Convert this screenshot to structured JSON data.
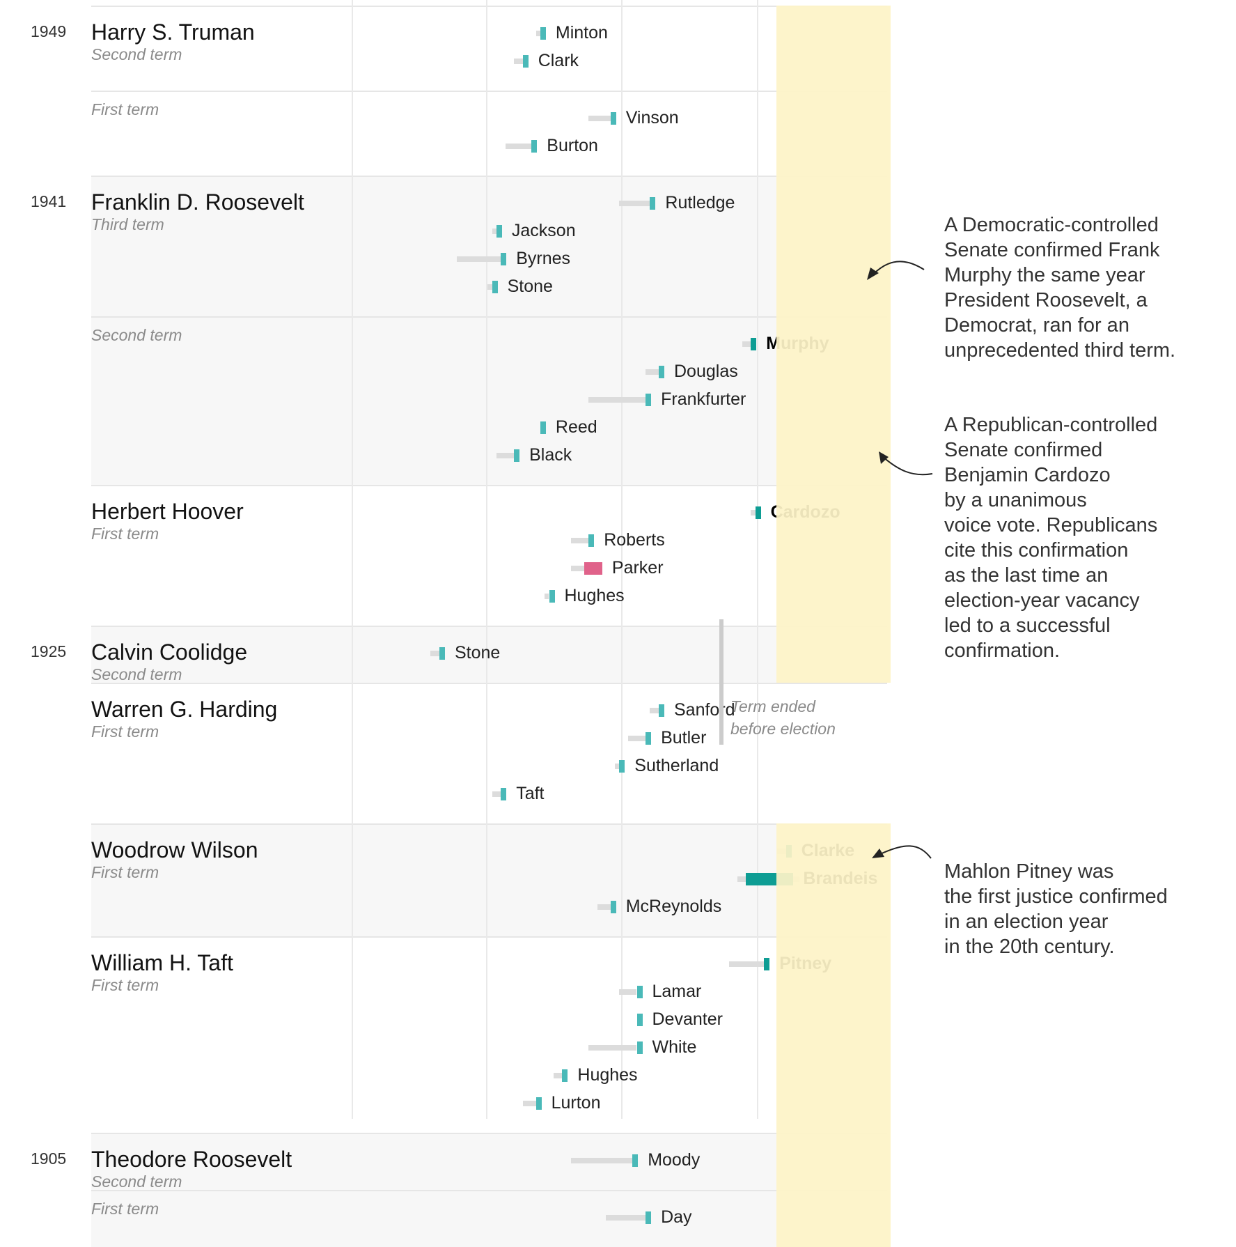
{
  "colors": {
    "confirmed": "#4ab9b8",
    "election_year_confirmed": "#0e9d94",
    "rejected": "#e0628a",
    "wait": "#dcdcdc",
    "highlight": "#fdf3c7"
  },
  "chart_data": {
    "type": "timeline",
    "title": "",
    "legend": [],
    "rows": [
      {
        "president": "Harry S. Truman",
        "term": "Second term",
        "year": "1949",
        "shaded": false,
        "justices": [
          {
            "name": "Minton",
            "nominated": 0.42,
            "confirmed": 0.43,
            "status": "confirmed"
          },
          {
            "name": "Clark",
            "nominated": 0.37,
            "confirmed": 0.39,
            "status": "confirmed"
          }
        ]
      },
      {
        "president": "",
        "term": "First term",
        "year": "",
        "shaded": false,
        "justices": [
          {
            "name": "Vinson",
            "nominated": 0.54,
            "confirmed": 0.59,
            "status": "confirmed"
          },
          {
            "name": "Burton",
            "nominated": 0.35,
            "confirmed": 0.41,
            "status": "confirmed"
          }
        ]
      },
      {
        "president": "Franklin D. Roosevelt",
        "term": "Third term",
        "year": "1941",
        "shaded": true,
        "justices": [
          {
            "name": "Rutledge",
            "nominated": 0.61,
            "confirmed": 0.68,
            "status": "confirmed"
          },
          {
            "name": "Jackson",
            "nominated": 0.32,
            "confirmed": 0.33,
            "status": "confirmed"
          },
          {
            "name": "Byrnes",
            "nominated": 0.24,
            "confirmed": 0.34,
            "status": "confirmed"
          },
          {
            "name": "Stone",
            "nominated": 0.31,
            "confirmed": 0.32,
            "status": "confirmed"
          }
        ]
      },
      {
        "president": "",
        "term": "Second term",
        "year": "",
        "shaded": true,
        "justices": [
          {
            "name": "Murphy",
            "nominated": 0.89,
            "confirmed": 0.91,
            "status": "election_year"
          },
          {
            "name": "Douglas",
            "nominated": 0.67,
            "confirmed": 0.7,
            "status": "confirmed"
          },
          {
            "name": "Frankfurter",
            "nominated": 0.54,
            "confirmed": 0.67,
            "status": "confirmed"
          },
          {
            "name": "Reed",
            "nominated": 0.43,
            "confirmed": 0.43,
            "status": "confirmed"
          },
          {
            "name": "Black",
            "nominated": 0.33,
            "confirmed": 0.37,
            "status": "confirmed"
          }
        ]
      },
      {
        "president": "Herbert Hoover",
        "term": "First term",
        "year": "",
        "shaded": false,
        "justices": [
          {
            "name": "Cardozo",
            "nominated": 0.91,
            "confirmed": 0.92,
            "status": "election_year"
          },
          {
            "name": "Roberts",
            "nominated": 0.5,
            "confirmed": 0.54,
            "status": "confirmed"
          },
          {
            "name": "Parker",
            "nominated": 0.5,
            "confirmed": 0.53,
            "status": "rejected"
          },
          {
            "name": "Hughes",
            "nominated": 0.44,
            "confirmed": 0.45,
            "status": "confirmed"
          }
        ]
      },
      {
        "president": "Calvin Coolidge",
        "term": "Second term",
        "year": "1925",
        "shaded": true,
        "justices": [
          {
            "name": "Stone",
            "nominated": 0.18,
            "confirmed": 0.2,
            "status": "confirmed"
          }
        ]
      },
      {
        "president": "Warren G. Harding",
        "term": "First term",
        "year": "",
        "shaded": false,
        "justices": [
          {
            "name": "Sanford",
            "nominated": 0.68,
            "confirmed": 0.7,
            "status": "confirmed"
          },
          {
            "name": "Butler",
            "nominated": 0.63,
            "confirmed": 0.67,
            "status": "confirmed"
          },
          {
            "name": "Sutherland",
            "nominated": 0.6,
            "confirmed": 0.61,
            "status": "confirmed"
          },
          {
            "name": "Taft",
            "nominated": 0.32,
            "confirmed": 0.34,
            "status": "confirmed"
          }
        ]
      },
      {
        "president": "Woodrow Wilson",
        "term": "First term",
        "year": "",
        "shaded": true,
        "justices": [
          {
            "name": "Clarke",
            "nominated": 0.97,
            "confirmed": 0.99,
            "status": "election_year"
          },
          {
            "name": "Brandeis",
            "nominated": 0.88,
            "confirmed": 1.02,
            "status": "election_year"
          },
          {
            "name": "McReynolds",
            "nominated": 0.56,
            "confirmed": 0.59,
            "status": "confirmed"
          }
        ]
      },
      {
        "president": "William H. Taft",
        "term": "First term",
        "year": "",
        "shaded": false,
        "justices": [
          {
            "name": "Pitney",
            "nominated": 0.86,
            "confirmed": 0.94,
            "status": "election_year"
          },
          {
            "name": "Lamar",
            "nominated": 0.61,
            "confirmed": 0.65,
            "status": "confirmed"
          },
          {
            "name": "Devanter",
            "nominated": 0.65,
            "confirmed": 0.65,
            "status": "confirmed"
          },
          {
            "name": "White",
            "nominated": 0.54,
            "confirmed": 0.65,
            "status": "confirmed"
          },
          {
            "name": "Hughes",
            "nominated": 0.46,
            "confirmed": 0.48,
            "status": "confirmed"
          },
          {
            "name": "Lurton",
            "nominated": 0.39,
            "confirmed": 0.42,
            "status": "confirmed"
          }
        ]
      },
      {
        "president": "Theodore Roosevelt",
        "term": "Second term",
        "year": "1905",
        "shaded": true,
        "justices": [
          {
            "name": "Moody",
            "nominated": 0.5,
            "confirmed": 0.64,
            "status": "confirmed"
          }
        ]
      },
      {
        "president": "",
        "term": "First term",
        "year": "",
        "shaded": true,
        "justices": [
          {
            "name": "Day",
            "nominated": 0.58,
            "confirmed": 0.67,
            "status": "confirmed"
          }
        ]
      }
    ]
  },
  "term_end_note": {
    "line1": "Term ended",
    "line2": "before election"
  },
  "annotations": [
    {
      "id": "murphy",
      "lines": [
        "A Democratic-controlled",
        "Senate confirmed Frank",
        "Murphy the same year",
        "President Roosevelt, a",
        "Democrat, ran for an",
        "unprecedented third term."
      ]
    },
    {
      "id": "cardozo",
      "lines": [
        "A Republican-controlled",
        "Senate confirmed",
        "Benjamin Cardozo",
        "by a unanimous",
        "voice vote. Republicans",
        "cite this confirmation",
        "as the last time an",
        "election-year vacancy",
        "led to a successful",
        "confirmation."
      ]
    },
    {
      "id": "pitney",
      "lines": [
        "Mahlon Pitney was",
        "the first justice confirmed",
        "in an election year",
        "in the 20th century."
      ]
    }
  ]
}
